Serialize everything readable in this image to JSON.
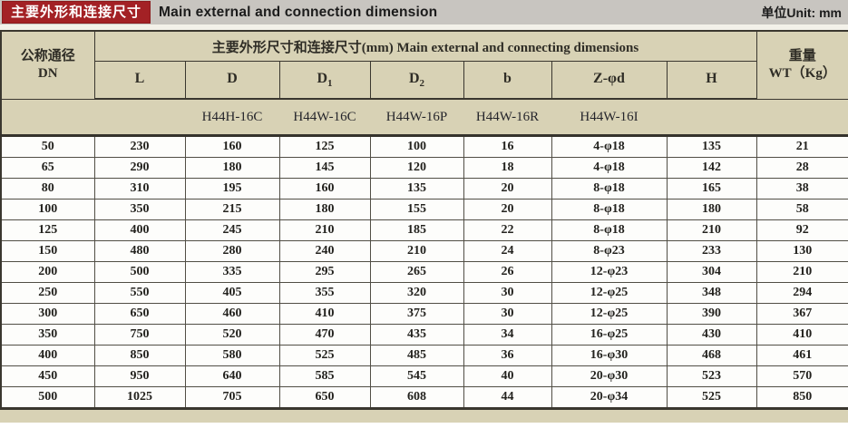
{
  "title_bar": {
    "zh": "主要外形和连接尺寸",
    "en": "Main external and connection dimension",
    "unit": "单位Unit: mm"
  },
  "table": {
    "dn_header": {
      "zh": "公称通径",
      "en": "DN"
    },
    "group_header": "主要外形尺寸和连接尺寸(mm) Main external and connecting dimensions",
    "weight_header": {
      "zh": "重量",
      "en": "WT（Kg）"
    },
    "sub_columns": [
      {
        "label": "L",
        "sub": ""
      },
      {
        "label": "D",
        "sub": ""
      },
      {
        "label": "D",
        "sub": "1"
      },
      {
        "label": "D",
        "sub": "2"
      },
      {
        "label": "b",
        "sub": ""
      },
      {
        "label": "Z-φd",
        "sub": ""
      },
      {
        "label": "H",
        "sub": ""
      }
    ],
    "models": [
      "H44H-16C",
      "H44W-16C",
      "H44W-16P",
      "H44W-16R",
      "H44W-16I"
    ],
    "rows": [
      [
        "50",
        "230",
        "160",
        "125",
        "100",
        "16",
        "4-φ18",
        "135",
        "21"
      ],
      [
        "65",
        "290",
        "180",
        "145",
        "120",
        "18",
        "4-φ18",
        "142",
        "28"
      ],
      [
        "80",
        "310",
        "195",
        "160",
        "135",
        "20",
        "8-φ18",
        "165",
        "38"
      ],
      [
        "100",
        "350",
        "215",
        "180",
        "155",
        "20",
        "8-φ18",
        "180",
        "58"
      ],
      [
        "125",
        "400",
        "245",
        "210",
        "185",
        "22",
        "8-φ18",
        "210",
        "92"
      ],
      [
        "150",
        "480",
        "280",
        "240",
        "210",
        "24",
        "8-φ23",
        "233",
        "130"
      ],
      [
        "200",
        "500",
        "335",
        "295",
        "265",
        "26",
        "12-φ23",
        "304",
        "210"
      ],
      [
        "250",
        "550",
        "405",
        "355",
        "320",
        "30",
        "12-φ25",
        "348",
        "294"
      ],
      [
        "300",
        "650",
        "460",
        "410",
        "375",
        "30",
        "12-φ25",
        "390",
        "367"
      ],
      [
        "350",
        "750",
        "520",
        "470",
        "435",
        "34",
        "16-φ25",
        "430",
        "410"
      ],
      [
        "400",
        "850",
        "580",
        "525",
        "485",
        "36",
        "16-φ30",
        "468",
        "461"
      ],
      [
        "450",
        "950",
        "640",
        "585",
        "545",
        "40",
        "20-φ30",
        "523",
        "570"
      ],
      [
        "500",
        "1025",
        "705",
        "650",
        "608",
        "44",
        "20-φ34",
        "525",
        "850"
      ]
    ]
  },
  "colors": {
    "badge_red": "#a32125",
    "titlebar_gray": "#c8c5c0",
    "header_beige": "#d8d2b5",
    "border_dark": "#3a372f"
  }
}
